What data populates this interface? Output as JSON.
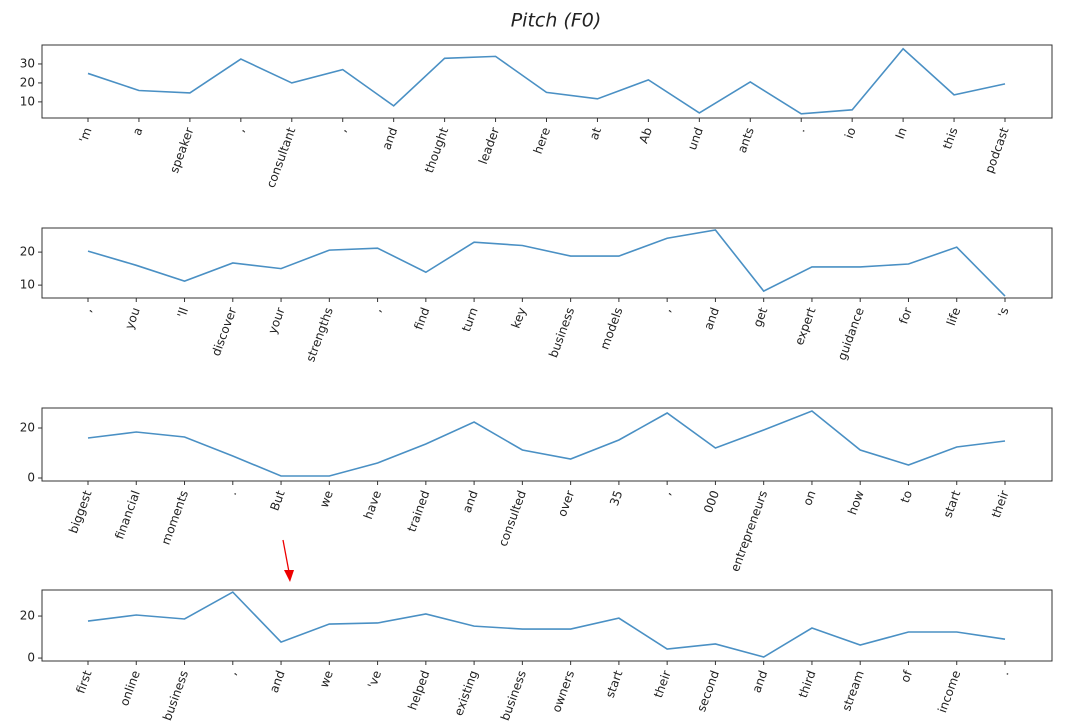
{
  "chart_data": [
    {
      "type": "line",
      "title": "Pitch (F0)",
      "color": "#4a90c4",
      "ylim": [
        1.5,
        40
      ],
      "yticks": [
        10,
        20,
        30
      ],
      "categories": [
        "'m",
        "a",
        "speaker",
        ",",
        "consultant",
        ",",
        "and",
        "thought",
        "leader",
        "here",
        "at",
        "Ab",
        "und",
        "ants",
        ".",
        "io",
        "In",
        "this",
        "podcast"
      ],
      "values": [
        25,
        16,
        14.7,
        32.6,
        20,
        27,
        7.9,
        33,
        34,
        15,
        11.6,
        21.6,
        4.2,
        20.5,
        3.7,
        5.8,
        38,
        13.7,
        19.5
      ]
    },
    {
      "type": "line",
      "color": "#4a90c4",
      "ylim": [
        6.1,
        27.3
      ],
      "yticks": [
        10,
        20
      ],
      "categories": [
        ",",
        "you",
        "'ll",
        "discover",
        "your",
        "strengths",
        ",",
        "find",
        "turn",
        "key",
        "business",
        "models",
        ",",
        "and",
        "get",
        "expert",
        "guidance",
        "for",
        "life",
        "'s"
      ],
      "values": [
        20.3,
        16,
        11.2,
        16.7,
        15,
        20.6,
        21.2,
        13.9,
        23,
        22,
        18.8,
        18.8,
        24.2,
        26.7,
        8.2,
        15.5,
        15.5,
        16.4,
        21.5,
        6.7
      ]
    },
    {
      "type": "line",
      "color": "#4a90c4",
      "ylim": [
        -1.2,
        28
      ],
      "yticks": [
        0,
        20
      ],
      "categories": [
        "biggest",
        "financial",
        "moments",
        ".",
        "But",
        "we",
        "have",
        "trained",
        "and",
        "consulted",
        "over",
        "35",
        ",",
        "000",
        "entrepreneurs",
        "on",
        "how",
        "to",
        "start",
        "their"
      ],
      "values": [
        16,
        18.4,
        16.4,
        8.8,
        0.8,
        0.8,
        6,
        13.6,
        22.4,
        11.2,
        7.6,
        15.2,
        26,
        12,
        19.2,
        26.8,
        11.2,
        5.2,
        12.4,
        14.8
      ]
    },
    {
      "type": "line",
      "color": "#4a90c4",
      "ylim": [
        -1.4,
        32.4
      ],
      "yticks": [
        0,
        20
      ],
      "categories": [
        "first",
        "online",
        "business",
        ",",
        "and",
        "we",
        "'ve",
        "helped",
        "existing",
        "business",
        "owners",
        "start",
        "their",
        "second",
        "and",
        "third",
        "stream",
        "of",
        "income",
        "."
      ],
      "values": [
        17.6,
        20.5,
        18.6,
        31.4,
        7.6,
        16.2,
        16.7,
        21,
        15.2,
        13.8,
        13.8,
        19,
        4.3,
        6.7,
        0.5,
        14.3,
        6.2,
        12.4,
        12.4,
        9
      ]
    }
  ]
}
